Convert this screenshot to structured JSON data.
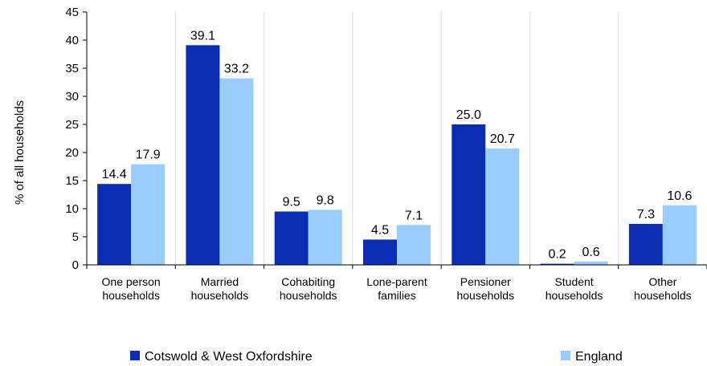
{
  "chart_data": {
    "type": "bar",
    "ylabel": "% of all households",
    "ylim": [
      0,
      45
    ],
    "yticks": [
      0,
      5,
      10,
      15,
      20,
      25,
      30,
      35,
      40,
      45
    ],
    "grid": true,
    "legend_position": "bottom",
    "categories": [
      [
        "One person",
        "households"
      ],
      [
        "Married",
        "households"
      ],
      [
        "Cohabiting",
        "households"
      ],
      [
        "Lone-parent",
        "families"
      ],
      [
        "Pensioner",
        "households"
      ],
      [
        "Student",
        "households"
      ],
      [
        "Other",
        "households"
      ]
    ],
    "series": [
      {
        "name": "Cotswold & West Oxfordshire",
        "color": "#0a2db4",
        "values": [
          14.4,
          39.1,
          9.5,
          4.5,
          25.0,
          0.2,
          7.3
        ],
        "labels": [
          "14.4",
          "39.1",
          "9.5",
          "4.5",
          "25.0",
          "0.2",
          "7.3"
        ]
      },
      {
        "name": "England",
        "color": "#99ccff",
        "values": [
          17.9,
          33.2,
          9.8,
          7.1,
          20.7,
          0.6,
          10.6
        ],
        "labels": [
          "17.9",
          "33.2",
          "9.8",
          "7.1",
          "20.7",
          "0.6",
          "10.6"
        ]
      }
    ]
  }
}
